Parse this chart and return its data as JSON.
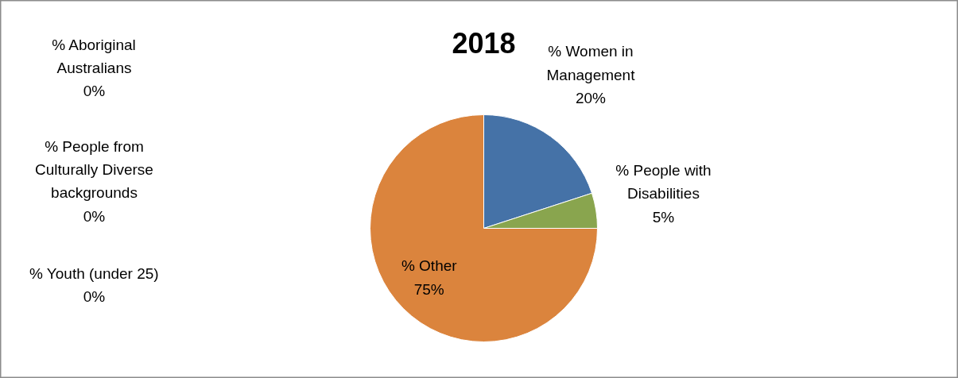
{
  "chart_data": {
    "type": "pie",
    "title": "2018",
    "categories": [
      "% Women in Management",
      "% Aboriginal Australians",
      "% People with Disabilities",
      "% People from Culturally Diverse backgrounds",
      "% Youth (under 25)",
      "% Other"
    ],
    "values": [
      20,
      0,
      5,
      0,
      0,
      75
    ],
    "colors": [
      "#4572a7",
      "#aa4643",
      "#89a54e",
      "#80699b",
      "#3d96ae",
      "#db843d"
    ],
    "value_labels": [
      "20%",
      "0%",
      "5%",
      "0%",
      "0%",
      "75%"
    ]
  }
}
